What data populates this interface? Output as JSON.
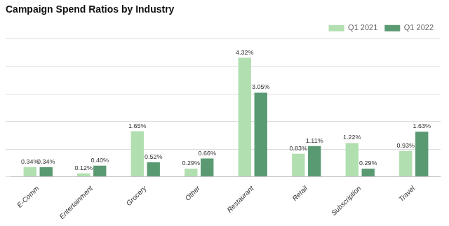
{
  "chart_data": {
    "type": "bar",
    "title": "Campaign Spend Ratios by Industry",
    "categories": [
      "E-Comm",
      "Entertainment",
      "Grocery",
      "Other",
      "Restaurant",
      "Retail",
      "Subscription",
      "Travel"
    ],
    "series": [
      {
        "name": "Q1 2021",
        "color": "#b2dfb0",
        "values": [
          0.34,
          0.12,
          1.65,
          0.29,
          4.32,
          0.83,
          1.22,
          0.93
        ],
        "value_labels": [
          "0.34%",
          "0.12%",
          "1.65%",
          "0.29%",
          "4.32%",
          "0.83%",
          "1.22%",
          "0.93%"
        ]
      },
      {
        "name": "Q1 2022",
        "color": "#5a9a72",
        "values": [
          0.34,
          0.4,
          0.52,
          0.66,
          3.05,
          1.11,
          0.29,
          1.63
        ],
        "value_labels": [
          "0.34%",
          "0.40%",
          "0.52%",
          "0.66%",
          "3.05%",
          "1.11%",
          "0.29%",
          "1.63%"
        ]
      }
    ],
    "ylim": [
      0,
      5.0
    ],
    "yticks": [
      0,
      1,
      2,
      3,
      4,
      5
    ],
    "grid": true,
    "legend": "upper right",
    "data_labels": true,
    "tick_labels": "x"
  }
}
